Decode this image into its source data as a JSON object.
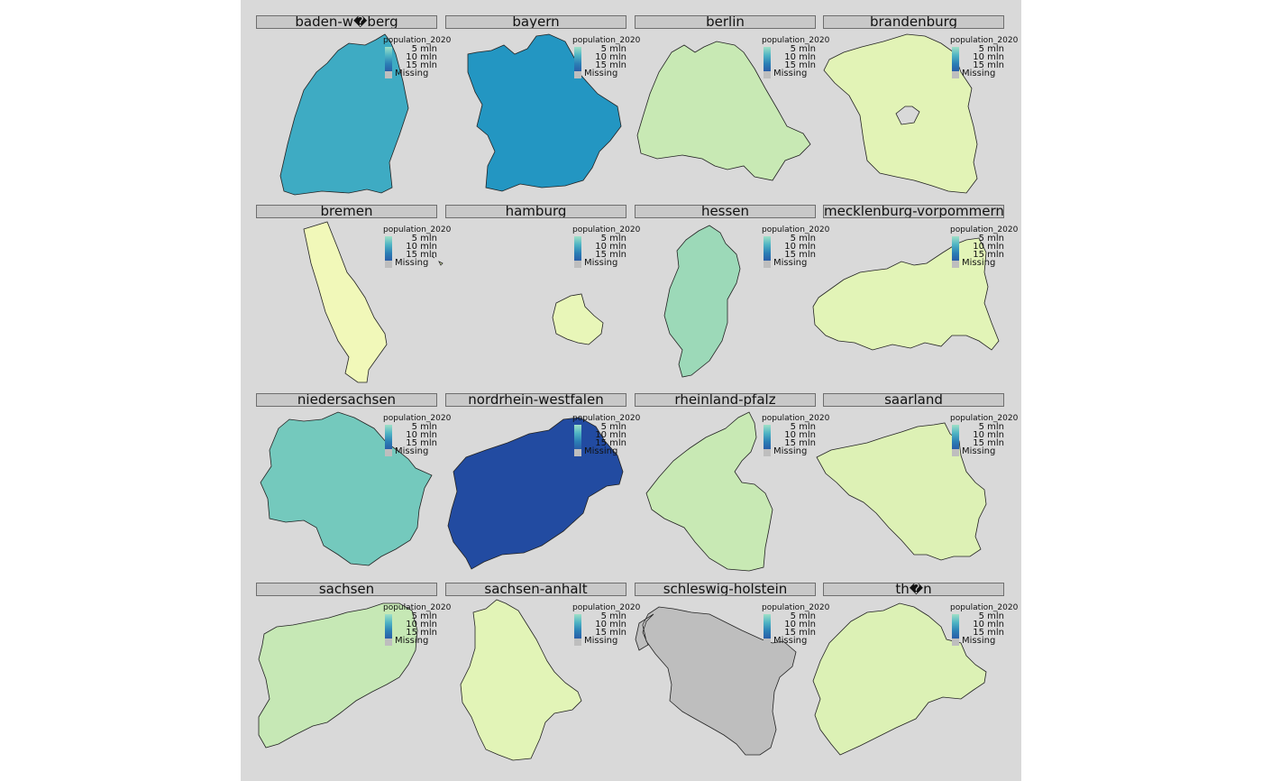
{
  "legend": {
    "title": "population_2020",
    "labels": [
      "5 mln",
      "10 mln",
      "15 mln"
    ],
    "missing_label": "Missing",
    "gradient_colors": [
      "#9fe0c7",
      "#4fb4c4",
      "#2b7fb5",
      "#2a5aa6"
    ],
    "missing_color": "#bebebe"
  },
  "facets": [
    {
      "label": "baden-w�berg",
      "fill": "#3eabc3"
    },
    {
      "label": "bayern",
      "fill": "#2396c2"
    },
    {
      "label": "berlin",
      "fill": "#c8e9b4"
    },
    {
      "label": "brandenburg",
      "fill": "#e2f3b6"
    },
    {
      "label": "bremen",
      "fill": "#f1f8b9"
    },
    {
      "label": "hamburg",
      "fill": "#e8f6b8"
    },
    {
      "label": "hessen",
      "fill": "#9cd9b8"
    },
    {
      "label": "mecklenburg-vorpommern",
      "fill": "#e2f4b7"
    },
    {
      "label": "niedersachsen",
      "fill": "#74c9bd"
    },
    {
      "label": "nordrhein-westfalen",
      "fill": "#224ba1"
    },
    {
      "label": "rheinland-pfalz",
      "fill": "#c8e9b4"
    },
    {
      "label": "saarland",
      "fill": "#ddf1b5"
    },
    {
      "label": "sachsen",
      "fill": "#c6e8b5"
    },
    {
      "label": "sachsen-anhalt",
      "fill": "#e2f4b7"
    },
    {
      "label": "schleswig-holstein",
      "fill": "#bebebe"
    },
    {
      "label": "th�n",
      "fill": "#dcf1b5"
    }
  ]
}
